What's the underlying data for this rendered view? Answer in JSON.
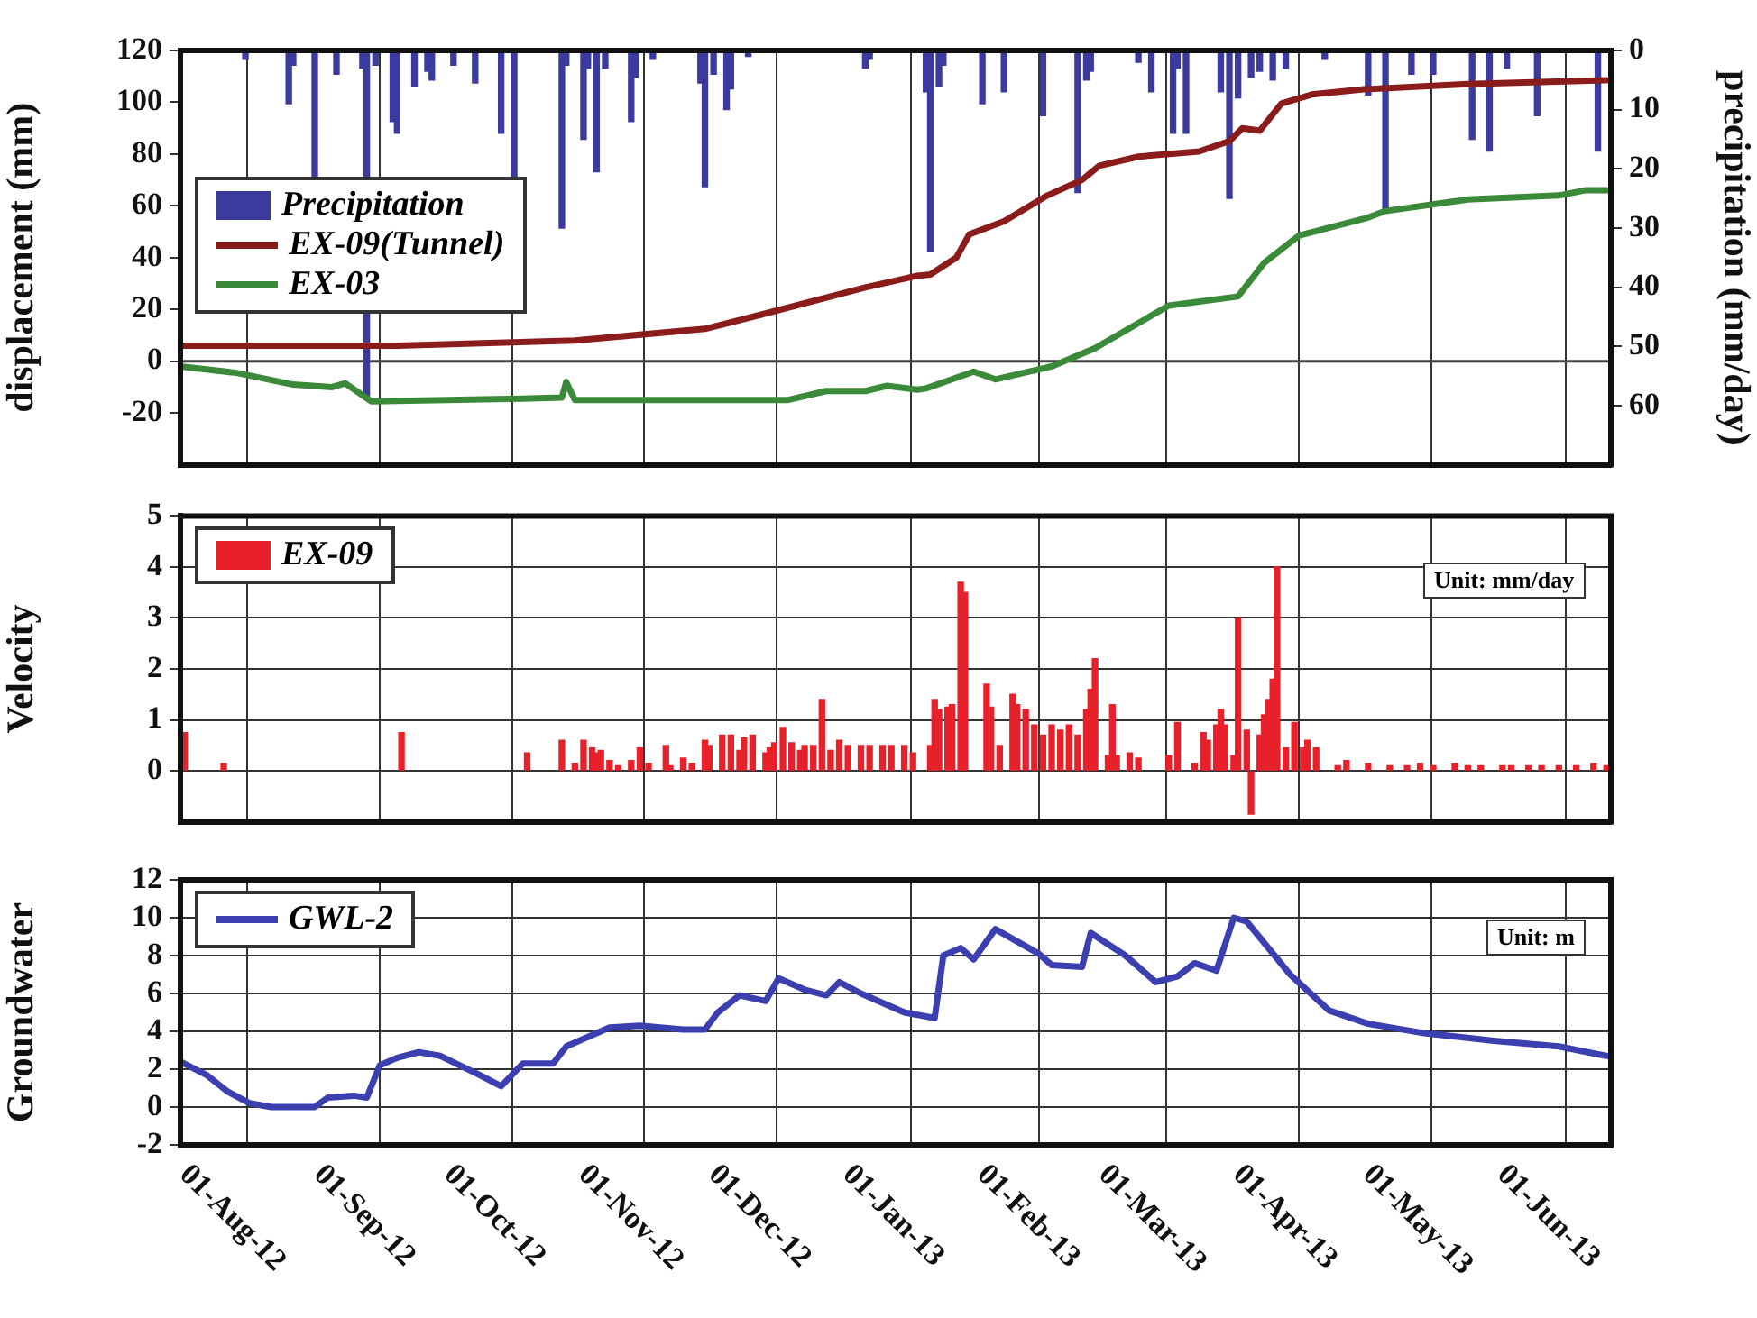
{
  "chart_data": [
    {
      "type": "line",
      "ylabel": "displacement (mm)",
      "y2label": "precipitation (mm/day)",
      "xlim": [
        "2012-08-01",
        "2013-06-27"
      ],
      "xticks": [
        {
          "value": "2012-08-01",
          "label": null
        },
        {
          "value": "2012-09-01",
          "label": null
        },
        {
          "value": "2012-10-01",
          "label": null
        },
        {
          "value": "2012-11-01",
          "label": null
        },
        {
          "value": "2012-12-01",
          "label": null
        },
        {
          "value": "2013-01-01",
          "label": null
        },
        {
          "value": "2013-02-01",
          "label": null
        },
        {
          "value": "2013-03-01",
          "label": null
        },
        {
          "value": "2013-04-01",
          "label": null
        },
        {
          "value": "2013-05-01",
          "label": null
        },
        {
          "value": "2013-06-01",
          "label": null
        }
      ],
      "ylim": [
        -40,
        120
      ],
      "yticks": [
        -20,
        0,
        20,
        40,
        60,
        80,
        100,
        120
      ],
      "y2lim": [
        70,
        0
      ],
      "y2ticks": [
        0,
        10,
        20,
        30,
        40,
        50,
        60
      ],
      "tick_labels": "y",
      "grid": "x",
      "legend": "left",
      "ref_lines": [
        {
          "axis": "y",
          "value": 0,
          "color": "#444444"
        }
      ],
      "series": [
        {
          "name": "Precipitation",
          "type": "bar",
          "axis": "y2",
          "color": "#3b3a9e",
          "x": [
            "2012-08-16",
            "2012-08-26",
            "2012-08-27",
            "2012-09-01",
            "2012-09-06",
            "2012-09-12",
            "2012-09-13",
            "2012-09-15",
            "2012-09-19",
            "2012-09-20",
            "2012-09-24",
            "2012-09-27",
            "2012-09-28",
            "2012-10-03",
            "2012-10-08",
            "2012-10-14",
            "2012-10-17",
            "2012-10-28",
            "2012-10-29",
            "2012-11-02",
            "2012-11-03",
            "2012-11-05",
            "2012-11-07",
            "2012-11-13",
            "2012-11-14",
            "2012-11-18",
            "2012-11-29",
            "2012-11-30",
            "2012-12-02",
            "2012-12-05",
            "2012-12-06",
            "2012-12-10",
            "2013-01-06",
            "2013-01-07",
            "2013-01-20",
            "2013-01-21",
            "2013-01-23",
            "2013-01-24",
            "2013-02-02",
            "2013-02-07",
            "2013-02-16",
            "2013-02-24",
            "2013-02-26",
            "2013-02-27",
            "2013-03-10",
            "2013-03-13",
            "2013-03-18",
            "2013-03-19",
            "2013-03-21",
            "2013-03-29",
            "2013-03-31",
            "2013-04-02",
            "2013-04-05",
            "2013-04-07",
            "2013-04-10",
            "2013-04-13",
            "2013-04-22",
            "2013-05-02",
            "2013-05-06",
            "2013-05-12",
            "2013-05-17",
            "2013-05-26",
            "2013-05-30",
            "2013-06-03",
            "2013-06-10",
            "2013-06-24"
          ],
          "values": [
            1.5,
            9,
            2.5,
            22,
            4,
            3,
            59,
            2.5,
            12,
            14,
            6,
            3.5,
            5,
            2.5,
            5.5,
            14,
            22,
            30,
            2.5,
            15,
            3,
            20.5,
            3,
            12,
            4.5,
            1.5,
            5.5,
            23,
            4,
            10,
            6.5,
            1,
            3,
            1.5,
            7,
            34,
            6,
            2.5,
            9,
            7,
            11,
            24,
            5,
            3.5,
            2,
            7,
            14,
            3,
            14,
            7,
            25,
            8,
            4.5,
            3.5,
            5,
            3,
            1.5,
            7.5,
            27,
            4,
            4,
            15,
            17,
            3,
            11,
            17
          ]
        },
        {
          "name": "EX-09(Tunnel)",
          "color": "#8b1c1c",
          "x": [
            "2012-08-01",
            "2012-09-20",
            "2012-10-31",
            "2012-11-30",
            "2012-12-13",
            "2013-01-06",
            "2013-01-18",
            "2013-01-21",
            "2013-01-27",
            "2013-01-30",
            "2013-02-07",
            "2013-02-17",
            "2013-02-25",
            "2013-03-01",
            "2013-03-10",
            "2013-03-24",
            "2013-03-31",
            "2013-04-03",
            "2013-04-07",
            "2013-04-12",
            "2013-04-19",
            "2013-05-01",
            "2013-05-25",
            "2013-06-26"
          ],
          "values": [
            6,
            6,
            8,
            12.5,
            18,
            28.5,
            33,
            33.5,
            40,
            49,
            54,
            64,
            70,
            75.5,
            79,
            81,
            85,
            90,
            89,
            99.5,
            103,
            105,
            107,
            108.5
          ]
        },
        {
          "name": "EX-03",
          "color": "#3a8a3a",
          "x": [
            "2012-08-01",
            "2012-08-14",
            "2012-08-27",
            "2012-09-05",
            "2012-09-08",
            "2012-09-14",
            "2012-10-19",
            "2012-10-28",
            "2012-10-29",
            "2012-10-31",
            "2012-12-19",
            "2012-12-28",
            "2013-01-06",
            "2013-01-11",
            "2013-01-18",
            "2013-01-20",
            "2013-01-31",
            "2013-02-05",
            "2013-02-18",
            "2013-02-28",
            "2013-03-17",
            "2013-04-02",
            "2013-04-08",
            "2013-04-16",
            "2013-05-02",
            "2013-05-06",
            "2013-05-25",
            "2013-06-15",
            "2013-06-21",
            "2013-06-26"
          ],
          "values": [
            -2,
            -4.5,
            -9,
            -10,
            -8.5,
            -15.5,
            -14.5,
            -14,
            -8,
            -15,
            -15,
            -11.5,
            -11.5,
            -9.5,
            -11,
            -10.5,
            -4,
            -7,
            -2,
            5,
            21.5,
            25,
            38,
            48.5,
            55.5,
            58,
            62.5,
            64,
            66,
            66
          ]
        }
      ]
    },
    {
      "type": "bar",
      "ylabel": "Velocity",
      "xlim": [
        "2012-08-01",
        "2013-06-27"
      ],
      "xticks": [
        {
          "value": "2012-08-01",
          "label": null
        },
        {
          "value": "2012-09-01",
          "label": null
        },
        {
          "value": "2012-10-01",
          "label": null
        },
        {
          "value": "2012-11-01",
          "label": null
        },
        {
          "value": "2012-12-01",
          "label": null
        },
        {
          "value": "2013-01-01",
          "label": null
        },
        {
          "value": "2013-02-01",
          "label": null
        },
        {
          "value": "2013-03-01",
          "label": null
        },
        {
          "value": "2013-04-01",
          "label": null
        },
        {
          "value": "2013-05-01",
          "label": null
        },
        {
          "value": "2013-06-01",
          "label": null
        }
      ],
      "ylim": [
        -1,
        5
      ],
      "yticks": [
        0,
        1,
        2,
        3,
        4,
        5
      ],
      "tick_labels": "y",
      "grid": true,
      "legend": "top left",
      "annotations": [
        "Unit: mm/day"
      ],
      "series": [
        {
          "name": "EX-09",
          "color": "#e8202a",
          "x": [
            "2012-08-02",
            "2012-08-11",
            "2012-09-21",
            "2012-10-20",
            "2012-10-28",
            "2012-10-31",
            "2012-11-02",
            "2012-11-04",
            "2012-11-05",
            "2012-11-06",
            "2012-11-08",
            "2012-11-10",
            "2012-11-13",
            "2012-11-15",
            "2012-11-17",
            "2012-11-21",
            "2012-11-22",
            "2012-11-25",
            "2012-11-27",
            "2012-11-30",
            "2012-12-01",
            "2012-12-04",
            "2012-12-06",
            "2012-12-08",
            "2012-12-09",
            "2012-12-11",
            "2012-12-14",
            "2012-12-15",
            "2012-12-16",
            "2012-12-18",
            "2012-12-20",
            "2012-12-22",
            "2012-12-23",
            "2012-12-25",
            "2012-12-27",
            "2012-12-29",
            "2012-12-31",
            "2013-01-02",
            "2013-01-05",
            "2013-01-07",
            "2013-01-10",
            "2013-01-12",
            "2013-01-15",
            "2013-01-17",
            "2013-01-21",
            "2013-01-22",
            "2013-01-23",
            "2013-01-25",
            "2013-01-26",
            "2013-01-28",
            "2013-01-29",
            "2013-02-03",
            "2013-02-04",
            "2013-02-06",
            "2013-02-09",
            "2013-02-10",
            "2013-02-12",
            "2013-02-14",
            "2013-02-16",
            "2013-02-18",
            "2013-02-20",
            "2013-02-22",
            "2013-02-24",
            "2013-02-26",
            "2013-02-27",
            "2013-02-28",
            "2013-03-03",
            "2013-03-04",
            "2013-03-05",
            "2013-03-08",
            "2013-03-10",
            "2013-03-17",
            "2013-03-19",
            "2013-03-23",
            "2013-03-25",
            "2013-03-26",
            "2013-03-28",
            "2013-03-29",
            "2013-03-30",
            "2013-04-01",
            "2013-04-02",
            "2013-04-04",
            "2013-04-05",
            "2013-04-07",
            "2013-04-08",
            "2013-04-09",
            "2013-04-10",
            "2013-04-11",
            "2013-04-13",
            "2013-04-15",
            "2013-04-17",
            "2013-04-18",
            "2013-04-20",
            "2013-04-25",
            "2013-04-27",
            "2013-05-02",
            "2013-05-07",
            "2013-05-11",
            "2013-05-14",
            "2013-05-17",
            "2013-05-22",
            "2013-05-25",
            "2013-05-28",
            "2013-06-02",
            "2013-06-04",
            "2013-06-08",
            "2013-06-11",
            "2013-06-15",
            "2013-06-19",
            "2013-06-23",
            "2013-06-26"
          ],
          "values": [
            0.75,
            0.15,
            0.75,
            0.35,
            0.6,
            0.15,
            0.6,
            0.45,
            0.35,
            0.4,
            0.2,
            0.1,
            0.2,
            0.45,
            0.15,
            0.5,
            0.1,
            0.25,
            0.15,
            0.6,
            0.5,
            0.7,
            0.7,
            0.4,
            0.65,
            0.7,
            0.35,
            0.45,
            0.55,
            0.85,
            0.55,
            0.4,
            0.5,
            0.5,
            1.4,
            0.4,
            0.6,
            0.5,
            0.5,
            0.5,
            0.5,
            0.5,
            0.5,
            0.35,
            0.5,
            1.4,
            1.2,
            1.25,
            1.3,
            3.7,
            3.5,
            1.7,
            1.25,
            0.5,
            1.5,
            1.3,
            1.2,
            0.9,
            0.7,
            0.9,
            0.8,
            0.9,
            0.7,
            1.2,
            1.6,
            2.2,
            0.3,
            1.3,
            0.3,
            0.35,
            0.25,
            0.3,
            0.95,
            0.15,
            0.75,
            0.6,
            0.9,
            1.2,
            0.9,
            0.3,
            3,
            0.8,
            -0.85,
            0.7,
            1.1,
            1.4,
            1.8,
            4,
            0.45,
            0.95,
            0.45,
            0.6,
            0.45,
            0.1,
            0.2,
            0.15,
            0.1,
            0.1,
            0.15,
            0.1,
            0.15,
            0.1,
            0.1,
            0.1,
            0.1,
            0.1,
            0.1,
            0.1,
            0.1,
            0.15,
            0.1
          ]
        }
      ]
    },
    {
      "type": "line",
      "ylabel": "Groundwater",
      "xlim": [
        "2012-08-01",
        "2013-06-27"
      ],
      "xticks": [
        {
          "value": "2012-08-01",
          "label": "01-Aug-12"
        },
        {
          "value": "2012-09-01",
          "label": "01-Sep-12"
        },
        {
          "value": "2012-10-01",
          "label": "01-Oct-12"
        },
        {
          "value": "2012-11-01",
          "label": "01-Nov-12"
        },
        {
          "value": "2012-12-01",
          "label": "01-Dec-12"
        },
        {
          "value": "2013-01-01",
          "label": "01-Jan-13"
        },
        {
          "value": "2013-02-01",
          "label": "01-Feb-13"
        },
        {
          "value": "2013-03-01",
          "label": "01-Mar-13"
        },
        {
          "value": "2013-04-01",
          "label": "01-Apr-13"
        },
        {
          "value": "2013-05-01",
          "label": "01-May-13"
        },
        {
          "value": "2013-06-01",
          "label": "01-Jun-13"
        }
      ],
      "ylim": [
        -2,
        12
      ],
      "yticks": [
        -2,
        0,
        2,
        4,
        6,
        8,
        10,
        12
      ],
      "grid": true,
      "legend": "top left",
      "annotations": [
        "Unit: m"
      ],
      "series": [
        {
          "name": "GWL-2",
          "color": "#3b3fb0",
          "x": [
            "2012-08-01",
            "2012-08-07",
            "2012-08-12",
            "2012-08-17",
            "2012-08-22",
            "2012-09-01",
            "2012-09-04",
            "2012-09-10",
            "2012-09-13",
            "2012-09-16",
            "2012-09-20",
            "2012-09-25",
            "2012-09-30",
            "2012-10-09",
            "2012-10-14",
            "2012-10-19",
            "2012-10-26",
            "2012-10-29",
            "2012-11-08",
            "2012-11-15",
            "2012-11-25",
            "2012-11-30",
            "2012-12-03",
            "2012-12-08",
            "2012-12-14",
            "2012-12-17",
            "2012-12-23",
            "2012-12-28",
            "2012-12-31",
            "2013-01-05",
            "2013-01-15",
            "2013-01-22",
            "2013-01-24",
            "2013-01-28",
            "2013-01-31",
            "2013-02-05",
            "2013-02-15",
            "2013-02-18",
            "2013-02-25",
            "2013-02-27",
            "2013-03-07",
            "2013-03-14",
            "2013-03-19",
            "2013-03-23",
            "2013-03-28",
            "2013-04-01",
            "2013-04-04",
            "2013-04-14",
            "2013-04-23",
            "2013-05-02",
            "2013-05-15",
            "2013-05-31",
            "2013-06-15",
            "2013-06-26"
          ],
          "values": [
            2.4,
            1.7,
            0.8,
            0.2,
            0,
            0,
            0.5,
            0.6,
            0.5,
            2.2,
            2.6,
            2.9,
            2.7,
            1.7,
            1.1,
            2.3,
            2.3,
            3.2,
            4.2,
            4.3,
            4.1,
            4.1,
            5,
            5.9,
            5.6,
            6.8,
            6.2,
            5.9,
            6.6,
            6,
            5,
            4.7,
            8,
            8.4,
            7.8,
            9.4,
            8.1,
            7.5,
            7.4,
            9.2,
            8,
            6.6,
            6.9,
            7.6,
            7.2,
            10,
            9.8,
            7,
            5.1,
            4.4,
            3.9,
            3.5,
            3.2,
            2.7
          ]
        }
      ]
    }
  ]
}
